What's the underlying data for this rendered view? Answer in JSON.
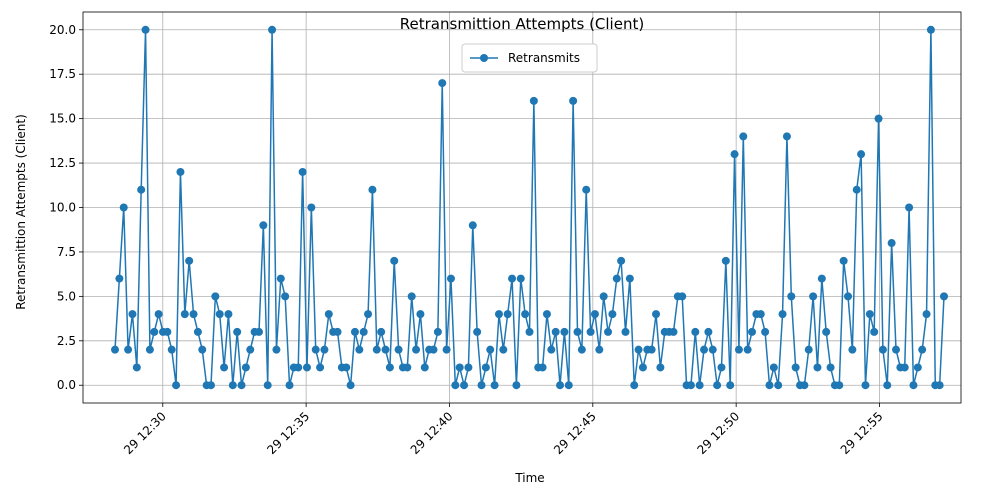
{
  "chart_data": {
    "type": "line",
    "title": "Retransmittion Attempts (Client)",
    "xlabel": "Time",
    "ylabel": "Retransmittion Attempts (Client)",
    "x_start": "12:28:20",
    "x_end": "12:57:15",
    "x_ticks": [
      "29 12:30",
      "29 12:35",
      "29 12:40",
      "29 12:45",
      "29 12:50",
      "29 12:55"
    ],
    "y_ticks": [
      "0.0",
      "2.5",
      "5.0",
      "7.5",
      "10.0",
      "12.5",
      "15.0",
      "17.5",
      "20.0"
    ],
    "ylim": [
      -1,
      21
    ],
    "grid": true,
    "legend_position": "top-center",
    "color": "#1f77b4",
    "series": [
      {
        "name": "Retransmits",
        "values": [
          2,
          6,
          10,
          2,
          4,
          1,
          11,
          20,
          2,
          3,
          4,
          3,
          3,
          2,
          0,
          12,
          4,
          7,
          4,
          3,
          2,
          0,
          0,
          5,
          4,
          1,
          4,
          0,
          3,
          0,
          1,
          2,
          3,
          3,
          9,
          0,
          20,
          2,
          6,
          5,
          0,
          1,
          1,
          12,
          1,
          10,
          2,
          1,
          2,
          4,
          3,
          3,
          1,
          1,
          0,
          3,
          2,
          3,
          4,
          11,
          2,
          3,
          2,
          1,
          7,
          2,
          1,
          1,
          5,
          2,
          4,
          1,
          2,
          2,
          3,
          17,
          2,
          6,
          0,
          1,
          0,
          1,
          9,
          3,
          0,
          1,
          2,
          0,
          4,
          2,
          4,
          6,
          0,
          6,
          4,
          3,
          16,
          1,
          1,
          4,
          2,
          3,
          0,
          3,
          0,
          16,
          3,
          2,
          11,
          3,
          4,
          2,
          5,
          3,
          4,
          6,
          7,
          3,
          6,
          0,
          2,
          1,
          2,
          2,
          4,
          1,
          3,
          3,
          3,
          5,
          5,
          0,
          0,
          3,
          0,
          2,
          3,
          2,
          0,
          1,
          7,
          0,
          13,
          2,
          14,
          2,
          3,
          4,
          4,
          3,
          0,
          1,
          0,
          4,
          14,
          5,
          1,
          0,
          0,
          2,
          5,
          1,
          6,
          3,
          1,
          0,
          0,
          7,
          5,
          2,
          11,
          13,
          0,
          4,
          3,
          15,
          2,
          0,
          8,
          2,
          1,
          1,
          10,
          0,
          1,
          2,
          4,
          20,
          0,
          0,
          5
        ]
      }
    ]
  }
}
